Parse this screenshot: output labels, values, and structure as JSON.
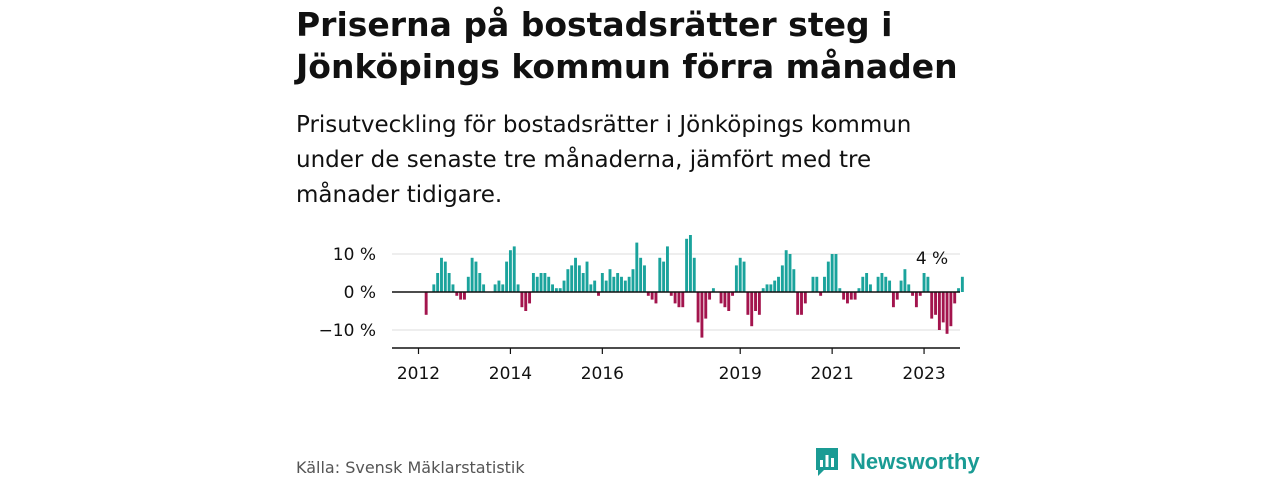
{
  "title": "Priserna på bostadsrätter steg i Jönköpings kommun förra månaden",
  "subtitle": "Prisutveckling för bostadsrätter i Jönköpings kommun under de senaste tre månaderna, jämfört med tre månader tidigare.",
  "source": "Källa: Svensk Mäklarstatistik",
  "brand": "Newsworthy",
  "colors": {
    "positive": "#1aa39c",
    "negative": "#a3144d",
    "brand": "#1a9b94"
  },
  "chart_data": {
    "type": "bar",
    "ylabel": "",
    "xlabel": "",
    "ylim": [
      -15,
      15
    ],
    "y_ticks": [
      10,
      0,
      -10
    ],
    "y_tick_labels": [
      "10 %",
      "0 %",
      "−10 %"
    ],
    "x_ticks": [
      {
        "label": "2012",
        "x": "2012-01"
      },
      {
        "label": "2014",
        "x": "2014-01"
      },
      {
        "label": "2016",
        "x": "2016-01"
      },
      {
        "label": "2019",
        "x": "2019-01"
      },
      {
        "label": "2021",
        "x": "2021-01"
      },
      {
        "label": "2023",
        "x": "2023-01"
      }
    ],
    "annotation": "4 %",
    "grid": true,
    "start": "2011-11",
    "values": [
      -6,
      0,
      2,
      5,
      9,
      8,
      5,
      2,
      -1,
      -2,
      -2,
      4,
      9,
      8,
      5,
      2,
      0,
      0,
      2,
      3,
      2,
      8,
      11,
      12,
      2,
      -4,
      -5,
      -3,
      5,
      4,
      5,
      5,
      4,
      2,
      1,
      1,
      3,
      6,
      7,
      9,
      7,
      5,
      8,
      2,
      3,
      -1,
      5,
      3,
      6,
      4,
      5,
      4,
      3,
      4,
      6,
      13,
      9,
      7,
      -1,
      -2,
      -3,
      9,
      8,
      12,
      -1,
      -3,
      -4,
      -4,
      14,
      15,
      9,
      -8,
      -12,
      -7,
      -2,
      1,
      0,
      -3,
      -4,
      -5,
      -1,
      7,
      9,
      8,
      -6,
      -9,
      -5,
      -6,
      1,
      2,
      2,
      3,
      4,
      7,
      11,
      10,
      6,
      -6,
      -6,
      -3,
      0,
      4,
      4,
      -1,
      4,
      8,
      10,
      10,
      1,
      -2,
      -3,
      -2,
      -2,
      1,
      4,
      5,
      2,
      0,
      4,
      5,
      4,
      3,
      -4,
      -2,
      3,
      6,
      2,
      -1,
      -4,
      -1,
      5,
      4,
      -7,
      -6,
      -10,
      -8,
      -11,
      -9,
      -3,
      1,
      4
    ]
  }
}
